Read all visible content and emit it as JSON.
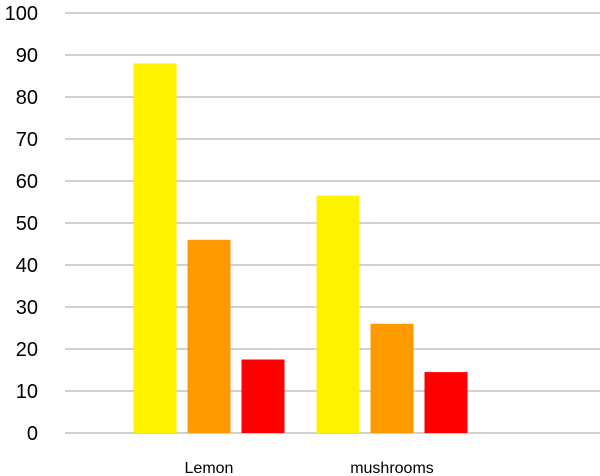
{
  "chart_data": {
    "type": "bar",
    "categories": [
      "Lemon",
      "mushrooms"
    ],
    "series": [
      {
        "values": [
          88,
          56.5
        ],
        "color": "#FFF200"
      },
      {
        "values": [
          46,
          26
        ],
        "color": "#FF9900"
      },
      {
        "values": [
          17.5,
          14.5
        ],
        "color": "#FF0000"
      }
    ],
    "yticks": [
      0,
      10,
      20,
      30,
      40,
      50,
      60,
      70,
      80,
      90,
      100
    ],
    "ylim": [
      0,
      100
    ],
    "grid": true,
    "title": "",
    "xlabel": "",
    "ylabel": ""
  }
}
